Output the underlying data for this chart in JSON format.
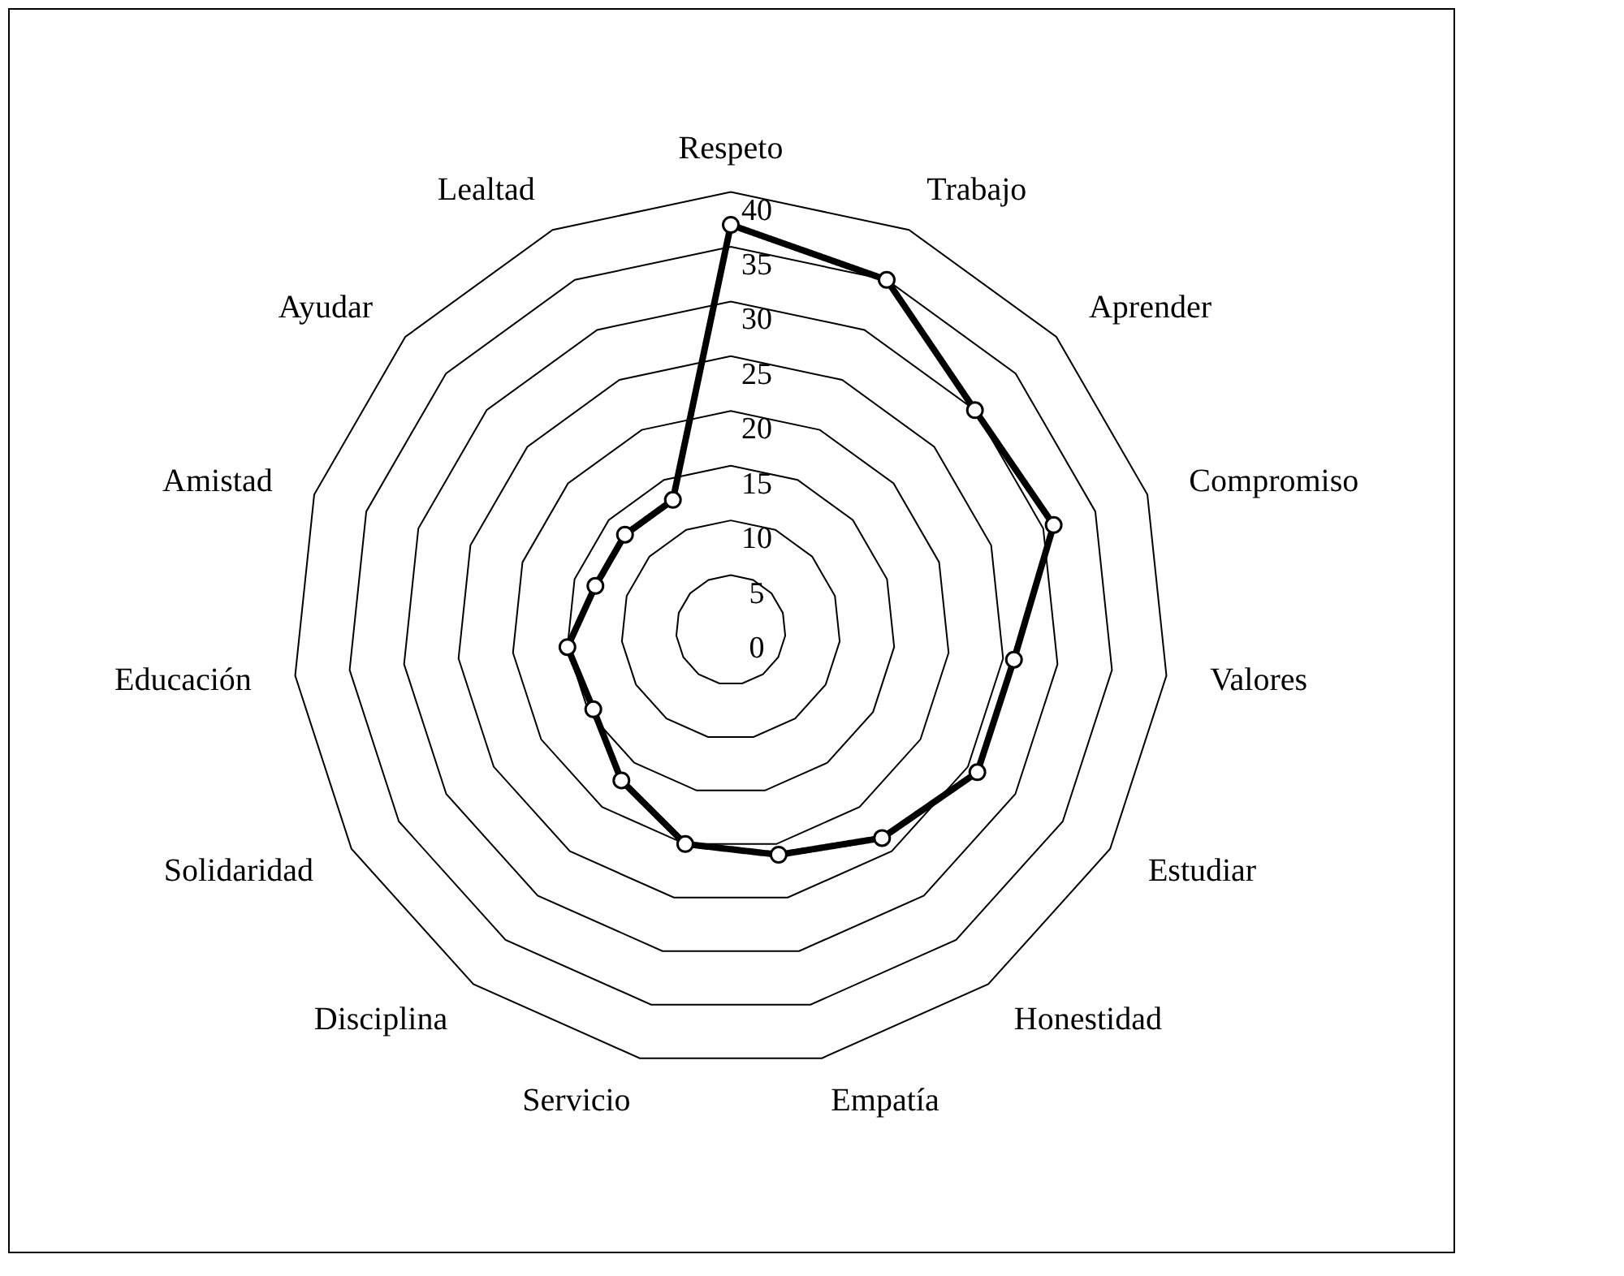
{
  "chart_data": {
    "type": "radar",
    "categories": [
      "Respeto",
      "Trabajo",
      "Aprender",
      "Compromiso",
      "Valores",
      "Estudiar",
      "Honestidad",
      "Empatía",
      "Servicio",
      "Disciplina",
      "Solidaridad",
      "Educación",
      "Amistad",
      "Ayudar",
      "Lealtad"
    ],
    "series": [
      {
        "color": "#000000",
        "values": [
          37,
          35,
          30,
          31,
          26,
          26,
          23.5,
          21,
          20,
          17,
          14.5,
          15,
          13,
          13,
          13
        ]
      }
    ],
    "ylim": [
      0,
      40
    ],
    "yticks": [
      0,
      5,
      10,
      15,
      20,
      25,
      30,
      35,
      40
    ],
    "marker": "circle",
    "line_style": "solid",
    "grid": true,
    "legend": false
  }
}
